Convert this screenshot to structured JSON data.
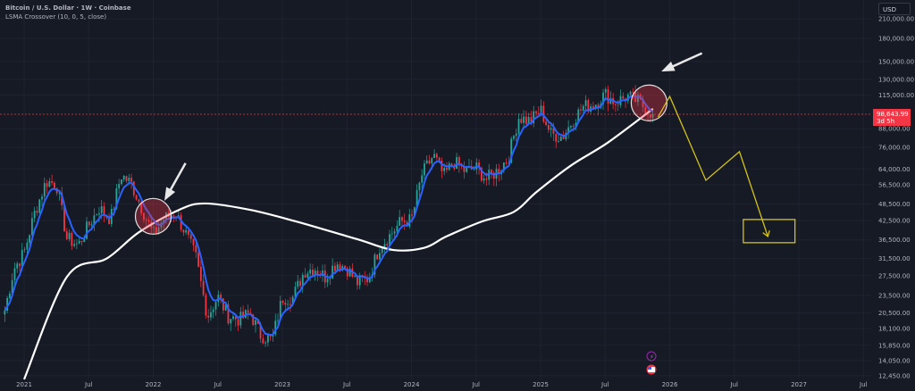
{
  "legend": {
    "symbol": "Bitcoin / U.S. Dollar · 1W · Coinbase",
    "indicator": "LSMA Crossover (10, 0, 5, close)"
  },
  "currency_button": "USD",
  "last_price": {
    "value": "98,643.99",
    "countdown": "3d 5h"
  },
  "colors": {
    "background": "#161a25",
    "up": "#26a69a",
    "down": "#f23645",
    "fast_line": "#2962ff",
    "slow_line": "#ffffff",
    "projection": "#d4c21c"
  },
  "chart_data": {
    "type": "candlestick",
    "title": "Bitcoin / U.S. Dollar · 1W · Coinbase",
    "y_scale": "log",
    "ylim": [
      12000,
      230000
    ],
    "y_ticks": [
      "210,000.00",
      "180,000.00",
      "150,000.00",
      "130,000.00",
      "115,000.00",
      "88,000.00",
      "76,000.00",
      "64,000.00",
      "56,500.00",
      "48,500.00",
      "42,500.00",
      "36,500.00",
      "31,500.00",
      "27,500.00",
      "23,500.00",
      "20,500.00",
      "18,100.00",
      "15,850.00",
      "14,050.00",
      "12,450.00"
    ],
    "y_tick_values": [
      210000,
      180000,
      150000,
      130000,
      115000,
      88000,
      76000,
      64000,
      56500,
      48500,
      42500,
      36500,
      31500,
      27500,
      23500,
      20500,
      18100,
      15850,
      14050,
      12450
    ],
    "x_ticks": [
      {
        "label": "2021",
        "t": 2021.0
      },
      {
        "label": "Jul",
        "t": 2021.5
      },
      {
        "label": "2022",
        "t": 2022.0
      },
      {
        "label": "Jul",
        "t": 2022.5
      },
      {
        "label": "2023",
        "t": 2023.0
      },
      {
        "label": "Jul",
        "t": 2023.5
      },
      {
        "label": "2024",
        "t": 2024.0
      },
      {
        "label": "Jul",
        "t": 2024.5
      },
      {
        "label": "2025",
        "t": 2025.0
      },
      {
        "label": "Jul",
        "t": 2025.5
      },
      {
        "label": "2026",
        "t": 2026.0
      },
      {
        "label": "Jul",
        "t": 2026.5
      },
      {
        "label": "2027",
        "t": 2027.0
      },
      {
        "label": "Jul",
        "t": 2027.5
      }
    ],
    "monthly_closes": [
      [
        2020.83,
        19000
      ],
      [
        2020.92,
        29000
      ],
      [
        2021.0,
        33000
      ],
      [
        2021.08,
        45000
      ],
      [
        2021.17,
        58000
      ],
      [
        2021.25,
        57000
      ],
      [
        2021.33,
        37000
      ],
      [
        2021.42,
        35000
      ],
      [
        2021.5,
        41000
      ],
      [
        2021.58,
        47000
      ],
      [
        2021.67,
        43000
      ],
      [
        2021.75,
        61000
      ],
      [
        2021.83,
        57000
      ],
      [
        2021.92,
        46000
      ],
      [
        2022.0,
        38000
      ],
      [
        2022.08,
        43000
      ],
      [
        2022.17,
        45500
      ],
      [
        2022.25,
        38500
      ],
      [
        2022.33,
        31800
      ],
      [
        2022.42,
        19900
      ],
      [
        2022.5,
        23300
      ],
      [
        2022.58,
        20000
      ],
      [
        2022.67,
        19400
      ],
      [
        2022.75,
        20500
      ],
      [
        2022.83,
        17200
      ],
      [
        2022.92,
        16500
      ],
      [
        2023.0,
        23100
      ],
      [
        2023.08,
        23100
      ],
      [
        2023.17,
        28500
      ],
      [
        2023.25,
        29200
      ],
      [
        2023.33,
        27200
      ],
      [
        2023.42,
        30500
      ],
      [
        2023.5,
        29200
      ],
      [
        2023.58,
        26000
      ],
      [
        2023.67,
        27000
      ],
      [
        2023.75,
        34500
      ],
      [
        2023.83,
        37700
      ],
      [
        2023.92,
        42300
      ],
      [
        2024.0,
        42600
      ],
      [
        2024.08,
        61100
      ],
      [
        2024.17,
        71300
      ],
      [
        2024.25,
        60600
      ],
      [
        2024.33,
        67500
      ],
      [
        2024.42,
        62700
      ],
      [
        2024.5,
        64600
      ],
      [
        2024.58,
        59000
      ],
      [
        2024.67,
        63300
      ],
      [
        2024.75,
        70200
      ],
      [
        2024.83,
        96400
      ],
      [
        2024.92,
        93400
      ],
      [
        2025.0,
        102400
      ],
      [
        2025.08,
        84300
      ],
      [
        2025.17,
        82500
      ],
      [
        2025.25,
        94200
      ],
      [
        2025.33,
        104600
      ],
      [
        2025.42,
        107100
      ],
      [
        2025.5,
        115700
      ],
      [
        2025.58,
        108200
      ],
      [
        2025.67,
        114000
      ],
      [
        2025.75,
        109500
      ],
      [
        2025.87,
        98643.99
      ]
    ],
    "slow_lsma": [
      [
        2021.0,
        12100
      ],
      [
        2021.33,
        27200
      ],
      [
        2021.64,
        31500
      ],
      [
        2021.89,
        38800
      ],
      [
        2022.2,
        46300
      ],
      [
        2022.4,
        48700
      ],
      [
        2022.75,
        46300
      ],
      [
        2023.1,
        42300
      ],
      [
        2023.58,
        36700
      ],
      [
        2023.86,
        33700
      ],
      [
        2024.1,
        34300
      ],
      [
        2024.27,
        37500
      ],
      [
        2024.55,
        42300
      ],
      [
        2024.79,
        45500
      ],
      [
        2024.97,
        53400
      ],
      [
        2025.24,
        66000
      ],
      [
        2025.52,
        78800
      ],
      [
        2025.87,
        103000
      ]
    ],
    "annotations": {
      "circles": [
        {
          "t": 2022.0,
          "price": 44000
        },
        {
          "t": 2025.84,
          "price": 108000
        }
      ],
      "arrows": [
        {
          "from": [
            2022.25,
            67000
          ],
          "to": [
            2022.1,
            51000
          ]
        },
        {
          "from": [
            2026.25,
            160000
          ],
          "to": [
            2025.96,
            140000
          ]
        }
      ],
      "projection_path": [
        [
          2025.91,
          96600
        ],
        [
          2026.0,
          113700
        ],
        [
          2026.28,
          58500
        ],
        [
          2026.54,
          73400
        ],
        [
          2026.76,
          37500
        ]
      ],
      "target_box": {
        "t0": 2026.57,
        "t1": 2026.97,
        "p_high": 42900,
        "p_low": 35700
      }
    }
  }
}
